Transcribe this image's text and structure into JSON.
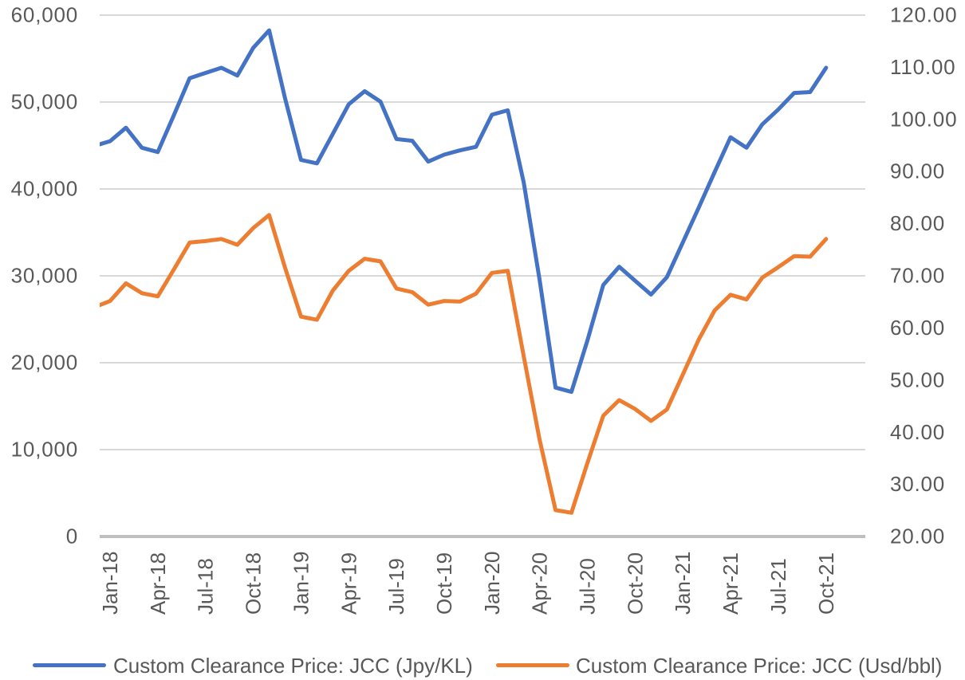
{
  "chart_data": {
    "type": "line",
    "categories": [
      "Dec-17",
      "Jan-18",
      "Feb-18",
      "Mar-18",
      "Apr-18",
      "May-18",
      "Jun-18",
      "Jul-18",
      "Aug-18",
      "Sep-18",
      "Oct-18",
      "Nov-18",
      "Dec-18",
      "Jan-19",
      "Feb-19",
      "Mar-19",
      "Apr-19",
      "May-19",
      "Jun-19",
      "Jul-19",
      "Aug-19",
      "Sep-19",
      "Oct-19",
      "Nov-19",
      "Dec-19",
      "Jan-20",
      "Feb-20",
      "Mar-20",
      "Apr-20",
      "May-20",
      "Jun-20",
      "Jul-20",
      "Aug-20",
      "Sep-20",
      "Oct-20",
      "Nov-20",
      "Dec-20",
      "Jan-21",
      "Feb-21",
      "Mar-21",
      "Apr-21",
      "May-21",
      "Jun-21",
      "Jul-21",
      "Aug-21",
      "Sep-21",
      "Oct-21"
    ],
    "x_label_every": 3,
    "x_label_start": 1,
    "series": [
      {
        "name": "Custom Clearance Price: JCC (Jpy/KL)",
        "axis": "left",
        "color": "#4472C4",
        "values": [
          44900,
          45450,
          47000,
          44700,
          44200,
          48400,
          52700,
          53300,
          53900,
          53000,
          56200,
          58200,
          50400,
          43300,
          42900,
          46300,
          49700,
          51200,
          50000,
          45700,
          45500,
          43100,
          43900,
          44400,
          44800,
          48500,
          49000,
          40700,
          29500,
          17100,
          16600,
          22500,
          28900,
          31000,
          29400,
          27800,
          29800,
          33800,
          37800,
          41900,
          45900,
          44700,
          47400,
          49100,
          51000,
          51100,
          53900
        ]
      },
      {
        "name": "Custom Clearance Price: JCC (Usd/bbl)",
        "axis": "right",
        "color": "#ED7D31",
        "values": [
          63.9,
          65.1,
          68.5,
          66.6,
          66.0,
          71.1,
          76.3,
          76.6,
          77.0,
          75.9,
          79.1,
          81.6,
          71.5,
          62.1,
          61.5,
          67.1,
          70.9,
          73.2,
          72.7,
          67.5,
          66.8,
          64.4,
          65.1,
          65.0,
          66.5,
          70.5,
          70.9,
          54.5,
          38.5,
          25.0,
          24.5,
          34.0,
          43.1,
          46.1,
          44.4,
          42.1,
          44.3,
          51.0,
          57.7,
          63.3,
          66.3,
          65.4,
          69.6,
          71.6,
          73.7,
          73.6,
          77.0
        ]
      }
    ],
    "left_axis": {
      "min": 0,
      "max": 60000,
      "step": 10000,
      "tick_labels": [
        "0",
        "10,000",
        "20,000",
        "30,000",
        "40,000",
        "50,000",
        "60,000"
      ]
    },
    "right_axis": {
      "min": 20,
      "max": 120,
      "step": 10,
      "tick_labels": [
        "20.00",
        "30.00",
        "40.00",
        "50.00",
        "60.00",
        "70.00",
        "80.00",
        "90.00",
        "100.00",
        "110.00",
        "120.00"
      ]
    },
    "grid": true,
    "legend_position": "bottom",
    "colors": {
      "gridline": "#D9D9D9",
      "axis_line": "#BFBFBF",
      "label": "#595959",
      "background": "#FFFFFF"
    }
  }
}
